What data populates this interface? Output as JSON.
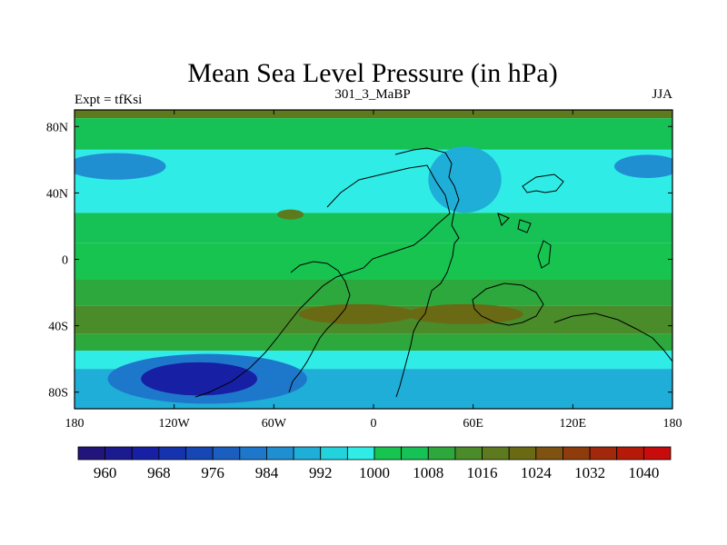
{
  "chart_data": {
    "type": "heatmap",
    "title": "Mean Sea Level Pressure (in hPa)",
    "left_subtitle": "Expt = tfKsi",
    "center_subtitle": "301_3_MaBP",
    "right_subtitle": "JJA",
    "xlim": [
      -180,
      180
    ],
    "ylim": [
      -90,
      90
    ],
    "x_ticks": [
      {
        "value": -180,
        "label": "180"
      },
      {
        "value": -120,
        "label": "120W"
      },
      {
        "value": -60,
        "label": "60W"
      },
      {
        "value": 0,
        "label": "0"
      },
      {
        "value": 60,
        "label": "60E"
      },
      {
        "value": 120,
        "label": "120E"
      },
      {
        "value": 180,
        "label": "180"
      }
    ],
    "y_ticks": [
      {
        "value": 80,
        "label": "80N"
      },
      {
        "value": 40,
        "label": "40N"
      },
      {
        "value": 0,
        "label": "0"
      },
      {
        "value": -40,
        "label": "40S"
      },
      {
        "value": -80,
        "label": "80S"
      }
    ],
    "colorbar": {
      "levels": [
        956,
        960,
        964,
        968,
        972,
        976,
        980,
        984,
        988,
        992,
        996,
        1000,
        1004,
        1008,
        1012,
        1016,
        1020,
        1024,
        1028,
        1032,
        1036,
        1040,
        1044
      ],
      "colors": [
        "#21157a",
        "#1c1a8f",
        "#1720a5",
        "#1533ad",
        "#1747b4",
        "#1a5fc0",
        "#1d78cc",
        "#1f8fd2",
        "#1faed7",
        "#22d2dc",
        "#30ece6",
        "#17c450",
        "#16c156",
        "#2ca83c",
        "#4a8b2a",
        "#5e7a1e",
        "#6b6a14",
        "#7e5210",
        "#8f3c0d",
        "#a2280b",
        "#b51a09",
        "#c80c0b"
      ],
      "labels": [
        {
          "value": 960,
          "label": "960"
        },
        {
          "value": 968,
          "label": "968"
        },
        {
          "value": 976,
          "label": "976"
        },
        {
          "value": 984,
          "label": "984"
        },
        {
          "value": 992,
          "label": "992"
        },
        {
          "value": 1000,
          "label": "1000"
        },
        {
          "value": 1008,
          "label": "1008"
        },
        {
          "value": 1016,
          "label": "1016"
        },
        {
          "value": 1024,
          "label": "1024"
        },
        {
          "value": 1032,
          "label": "1032"
        },
        {
          "value": 1040,
          "label": "1040"
        }
      ]
    },
    "zonal_bands": [
      {
        "lat_from": 90,
        "lat_to": 85,
        "value": 1018
      },
      {
        "lat_from": 85,
        "lat_to": 66,
        "value": 1006
      },
      {
        "lat_from": 66,
        "lat_to": 28,
        "value": 998
      },
      {
        "lat_from": 28,
        "lat_to": 10,
        "value": 1006
      },
      {
        "lat_from": 10,
        "lat_to": -12,
        "value": 1002
      },
      {
        "lat_from": -12,
        "lat_to": -28,
        "value": 1010
      },
      {
        "lat_from": -28,
        "lat_to": -45,
        "value": 1015
      },
      {
        "lat_from": -45,
        "lat_to": -55,
        "value": 1008
      },
      {
        "lat_from": -55,
        "lat_to": -66,
        "value": 998
      },
      {
        "lat_from": -66,
        "lat_to": -90,
        "value": 988
      }
    ],
    "features": [
      {
        "name": "north-pacific-low",
        "lon": -155,
        "lat": 56,
        "rlon": 30,
        "rlat": 8,
        "value": 984
      },
      {
        "name": "north-pacific-low-east",
        "lon": 165,
        "lat": 56,
        "rlon": 20,
        "rlat": 7,
        "value": 984
      },
      {
        "name": "asian-low",
        "lon": 55,
        "lat": 48,
        "rlon": 22,
        "rlat": 20,
        "value": 990
      },
      {
        "name": "antarctic-low",
        "lon": -105,
        "lat": -72,
        "rlon": 35,
        "rlat": 10,
        "value": 964
      },
      {
        "name": "antarctic-low-ring",
        "lon": -100,
        "lat": -72,
        "rlon": 60,
        "rlat": 15,
        "value": 980
      },
      {
        "name": "high-south-atlantic",
        "lon": -10,
        "lat": -33,
        "rlon": 35,
        "rlat": 6,
        "value": 1020
      },
      {
        "name": "high-indian",
        "lon": 55,
        "lat": -33,
        "rlon": 35,
        "rlat": 6,
        "value": 1020
      },
      {
        "name": "high-north-atlantic",
        "lon": -50,
        "lat": 27,
        "rlon": 8,
        "rlat": 3,
        "value": 1018
      }
    ]
  }
}
